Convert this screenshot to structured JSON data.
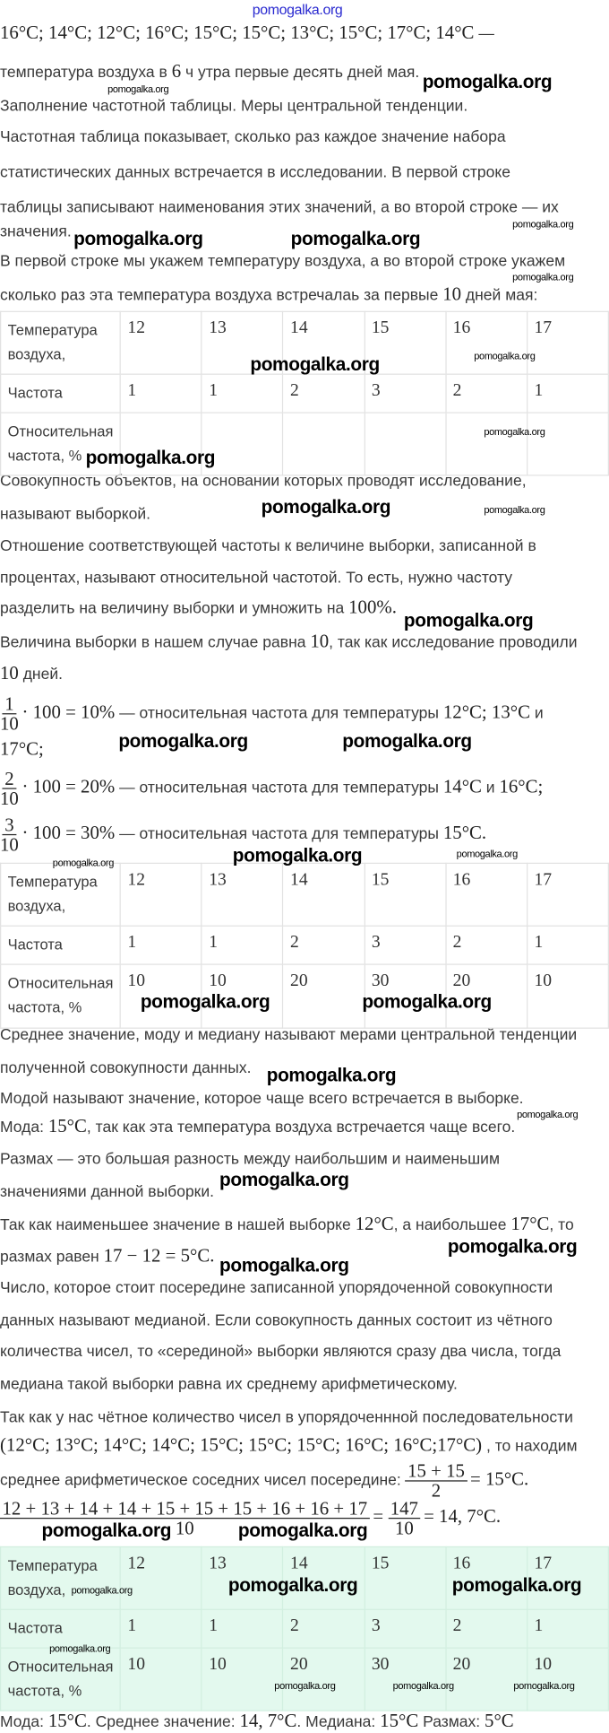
{
  "watermark": "pomogalka.org",
  "lines": [
    [
      {
        "text": "16°C; 14°C; 12°C; 16°C; 15°C; 15°C; 13°C; 15°C; 17°C; 14°C",
        "math": true
      },
      {
        "text": " —"
      }
    ],
    [
      {
        "text": "температура воздуха в "
      },
      {
        "text": "6",
        "math": true
      },
      {
        "text": " ч утра первые десять дней мая."
      }
    ],
    [
      {
        "text": "Заполнение частотной таблицы. Меры центральной тенденции."
      }
    ],
    [
      {
        "text": "Частотная таблица показывает, сколько раз каждое значение набора"
      }
    ],
    [
      {
        "text": "статистических данных встречается в исследовании. В первой строке"
      }
    ],
    [
      {
        "text": "таблицы записывают наименования этих значений, а во второй строке — их"
      }
    ],
    [
      {
        "text": "значения."
      }
    ],
    [
      {
        "text": "В первой строке мы укажем температуру воздуха, а во второй строке укажем"
      }
    ],
    [
      {
        "text": "сколько раз эта температура воздуха встречалаь за первые "
      },
      {
        "text": "10",
        "math": true
      },
      {
        "text": " дней мая:"
      }
    ],
    [
      {
        "text": "Совокупность объектов, на основании которых проводят исследование,"
      }
    ],
    [
      {
        "text": "называют выборкой."
      }
    ],
    [
      {
        "text": "Отношение соответствующей частоты к величине выборки, записанной в"
      }
    ],
    [
      {
        "text": "процентах, называют относительной частотой. То есть, нужно частоту"
      }
    ],
    [
      {
        "text": "разделить на величину выборки и умножить на "
      },
      {
        "text": "100%.",
        "math": true
      }
    ],
    [
      {
        "text": "Величина выборки в нашем случае равна "
      },
      {
        "text": "10",
        "math": true
      },
      {
        "text": ", так как исследование проводили"
      }
    ],
    [
      {
        "text": "10",
        "math": true
      },
      {
        "text": " дней."
      }
    ],
    [
      {
        "frac": [
          "1",
          "10"
        ]
      },
      {
        "text": "· 100 = 10%",
        "math": true
      },
      {
        "text": " — относительная частота для температуры "
      },
      {
        "text": "12°C; 13°C",
        "math": true
      },
      {
        "text": " и"
      }
    ],
    [
      {
        "text": "17°C;",
        "math": true
      }
    ],
    [
      {
        "frac": [
          "2",
          "10"
        ]
      },
      {
        "text": "· 100 = 20%",
        "math": true
      },
      {
        "text": " — относительная частота для температуры "
      },
      {
        "text": "14°C",
        "math": true
      },
      {
        "text": " и "
      },
      {
        "text": "16°C;",
        "math": true
      }
    ],
    [
      {
        "frac": [
          "3",
          "10"
        ]
      },
      {
        "text": "· 100 = 30%",
        "math": true
      },
      {
        "text": " — относительная частота для температуры "
      },
      {
        "text": "15°C.",
        "math": true
      }
    ],
    [
      {
        "text": "Среднее значение, моду и медиану называют мерами центральной тенденции"
      }
    ],
    [
      {
        "text": "полученной совокупности данных."
      }
    ],
    [
      {
        "text": "Модой называют значение, которое чаще всего встречается в выборке."
      }
    ],
    [
      {
        "text": "Мода: "
      },
      {
        "text": "15°C",
        "math": true
      },
      {
        "text": ", так как эта температура воздуха встречается чаще всего."
      }
    ],
    [
      {
        "text": "Размах — это большая разность между наибольшим и наименьшим"
      }
    ],
    [
      {
        "text": "значениями данной выборки."
      }
    ],
    [
      {
        "text": "Так как наименьшее значение в нашей выборке "
      },
      {
        "text": "12°C",
        "math": true
      },
      {
        "text": ", а наибольшее "
      },
      {
        "text": "17°C",
        "math": true
      },
      {
        "text": ", то"
      }
    ],
    [
      {
        "text": "размах равен "
      },
      {
        "text": "17 − 12 = 5°C.",
        "math": true
      }
    ],
    [
      {
        "text": "Число, которое стоит посередине записанной упорядоченной совокупности"
      }
    ],
    [
      {
        "text": "данных называют медианой. Если совокупность данных состоит из чётного"
      }
    ],
    [
      {
        "text": "количества чисел, то «серединой» выборки являются сразу два числа, тогда"
      }
    ],
    [
      {
        "text": "медиана такой выборки равна их среднему арифметическому."
      }
    ],
    [
      {
        "text": "Так как у нас чётное количество чисел в упорядоченнной последовательности"
      }
    ],
    [
      {
        "text": "(12°C; 13°C; 14°C; 14°C; 15°C; 15°C; 15°C; 16°C; 16°C;17°C)",
        "math": true
      },
      {
        "text": " , то находим"
      }
    ],
    [
      {
        "text": "среднее арифметическое соседних чисел посередине: "
      },
      {
        "frac": [
          "15 + 15",
          "2"
        ]
      },
      {
        "text": "= 15°C.",
        "math": true
      }
    ],
    [
      {
        "frac": [
          "12 + 13 + 14 + 14 + 15 + 15 + 15 + 16 + 16 + 17",
          "10"
        ]
      },
      {
        "text": "= ",
        "math": true
      },
      {
        "frac": [
          "147",
          "10"
        ]
      },
      {
        "text": "= 14, 7°C.",
        "math": true
      }
    ],
    [
      {
        "text": "Мода: "
      },
      {
        "text": "15°C",
        "math": true
      },
      {
        "text": ". Среднее значение: "
      },
      {
        "text": "14, 7°C",
        "math": true
      },
      {
        "text": ". Медиана: "
      },
      {
        "text": "15°C",
        "math": true
      },
      {
        "text": " Размах: "
      },
      {
        "text": "5°C",
        "math": true
      }
    ]
  ],
  "tables": [
    {
      "rows": [
        {
          "label": "Температура воздуха,",
          "values": [
            "12",
            "13",
            "14",
            "15",
            "16",
            "17"
          ]
        },
        {
          "label": "Частота",
          "values": [
            "1",
            "1",
            "2",
            "3",
            "2",
            "1"
          ]
        },
        {
          "label": "Относительная частота, %",
          "values": [
            "",
            "",
            "",
            "",
            "",
            ""
          ]
        }
      ]
    },
    {
      "rows": [
        {
          "label": "Температура воздуха,",
          "values": [
            "12",
            "13",
            "14",
            "15",
            "16",
            "17"
          ]
        },
        {
          "label": "Частота",
          "values": [
            "1",
            "1",
            "2",
            "3",
            "2",
            "1"
          ]
        },
        {
          "label": "Относительная частота, %",
          "values": [
            "10",
            "10",
            "20",
            "30",
            "20",
            "10"
          ]
        }
      ]
    },
    {
      "highlight": "#e3f9ee",
      "rows": [
        {
          "label": "Температура воздуха,",
          "values": [
            "12",
            "13",
            "14",
            "15",
            "16",
            "17"
          ]
        },
        {
          "label": "Частота",
          "values": [
            "1",
            "1",
            "2",
            "3",
            "2",
            "1"
          ]
        },
        {
          "label": "Относительная частота, %",
          "values": [
            "10",
            "10",
            "20",
            "30",
            "20",
            "10"
          ]
        }
      ]
    }
  ]
}
